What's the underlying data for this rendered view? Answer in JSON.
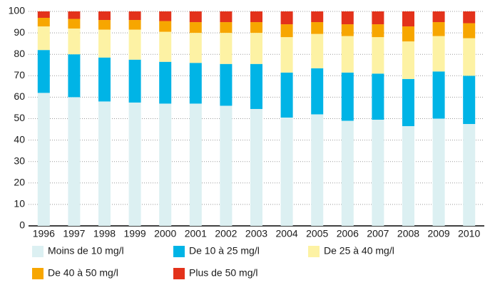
{
  "chart_data": {
    "type": "stacked-bar",
    "categories": [
      "1996",
      "1997",
      "1998",
      "1999",
      "2000",
      "2001",
      "2002",
      "2003",
      "2004",
      "2005",
      "2006",
      "2007",
      "2008",
      "2009",
      "2010"
    ],
    "series": [
      {
        "name": "Moins de 10 mg/l",
        "color": "#dcf0f2",
        "values": [
          62,
          60,
          58,
          57.5,
          57,
          57,
          56,
          54.5,
          50.5,
          52,
          49,
          49.5,
          46.5,
          50,
          47.5
        ]
      },
      {
        "name": "De 10 à 25 mg/l",
        "color": "#00b4e6",
        "values": [
          20,
          20,
          20.5,
          20,
          19.5,
          19,
          19.5,
          21,
          21,
          21.5,
          22.5,
          21.5,
          22,
          22,
          22.5
        ]
      },
      {
        "name": "De 25 à 40 mg/l",
        "color": "#fdf2a4",
        "values": [
          11,
          12,
          13,
          14,
          14,
          14,
          14.5,
          14.5,
          16.5,
          16,
          17,
          17,
          17.5,
          16.5,
          17.5
        ]
      },
      {
        "name": "De 40 à 50 mg/l",
        "color": "#f7a600",
        "values": [
          4,
          4.5,
          4.5,
          4.5,
          5,
          5,
          5,
          5,
          6,
          5.5,
          5.5,
          6,
          7,
          6.5,
          7
        ]
      },
      {
        "name": "Plus de 50 mg/l",
        "color": "#e3321b",
        "values": [
          3,
          3.5,
          4,
          4,
          4.5,
          5,
          5,
          5,
          6,
          5,
          6,
          6,
          7,
          5,
          5.5
        ]
      }
    ],
    "ylim": [
      0,
      100
    ],
    "yticks": [
      0,
      10,
      20,
      30,
      40,
      50,
      60,
      70,
      80,
      90,
      100
    ],
    "grid": true
  }
}
